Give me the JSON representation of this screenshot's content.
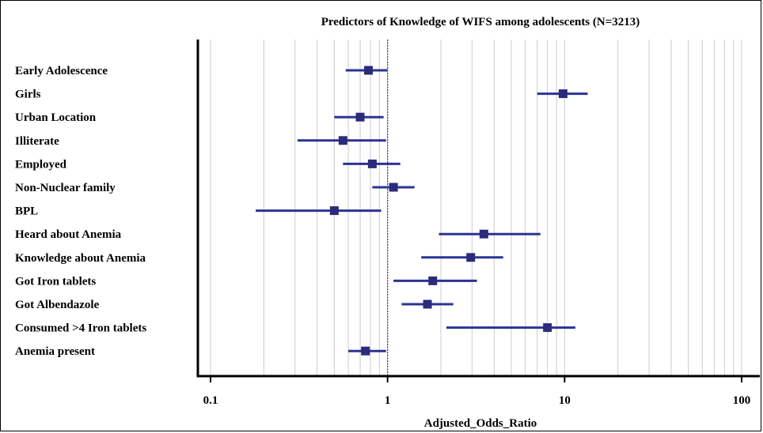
{
  "chart_data": {
    "type": "forest",
    "title": "Predictors of Knowledge of WIFS among adolescents (N=3213)",
    "xlabel": "Adjusted_Odds_Ratio",
    "x_scale": "log",
    "xlim": [
      0.08,
      110
    ],
    "x_ticks": [
      {
        "value": 0.1,
        "label": "0.1"
      },
      {
        "value": 1,
        "label": "1"
      },
      {
        "value": 10,
        "label": "10"
      },
      {
        "value": 100,
        "label": "100"
      }
    ],
    "reference_line": 1,
    "grid": true,
    "colors": {
      "marker": "#2b2b7a",
      "ci": "#2b3394",
      "reference": "#3333aa",
      "grid": "#cccccc"
    },
    "rows": [
      {
        "label": "Early Adolescence",
        "or": 0.78,
        "lo": 0.58,
        "hi": 1.0
      },
      {
        "label": "Girls",
        "or": 9.8,
        "lo": 7.0,
        "hi": 13.5
      },
      {
        "label": "Urban Location",
        "or": 0.7,
        "lo": 0.5,
        "hi": 0.95
      },
      {
        "label": "Illiterate",
        "or": 0.56,
        "lo": 0.31,
        "hi": 0.98
      },
      {
        "label": "Employed",
        "or": 0.82,
        "lo": 0.56,
        "hi": 1.18
      },
      {
        "label": "Non-Nuclear family",
        "or": 1.08,
        "lo": 0.82,
        "hi": 1.42
      },
      {
        "label": "BPL",
        "or": 0.5,
        "lo": 0.18,
        "hi": 0.92
      },
      {
        "label": "Heard about Anemia",
        "or": 3.5,
        "lo": 1.95,
        "hi": 7.3
      },
      {
        "label": "Knowledge about Anemia",
        "or": 2.95,
        "lo": 1.55,
        "hi": 4.5
      },
      {
        "label": "Got Iron tablets",
        "or": 1.8,
        "lo": 1.08,
        "hi": 3.2
      },
      {
        "label": "Got Albendazole",
        "or": 1.68,
        "lo": 1.2,
        "hi": 2.35
      },
      {
        "label": "Consumed >4 Iron tablets",
        "or": 8.0,
        "lo": 2.15,
        "hi": 11.5
      },
      {
        "label": "Anemia present",
        "or": 0.75,
        "lo": 0.6,
        "hi": 0.98
      }
    ]
  }
}
